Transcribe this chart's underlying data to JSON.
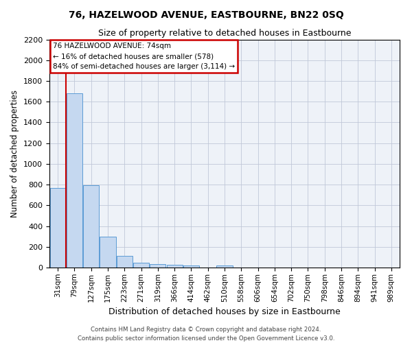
{
  "title": "76, HAZELWOOD AVENUE, EASTBOURNE, BN22 0SQ",
  "subtitle": "Size of property relative to detached houses in Eastbourne",
  "xlabel": "Distribution of detached houses by size in Eastbourne",
  "ylabel": "Number of detached properties",
  "categories": [
    "31sqm",
    "79sqm",
    "127sqm",
    "175sqm",
    "223sqm",
    "271sqm",
    "319sqm",
    "366sqm",
    "414sqm",
    "462sqm",
    "510sqm",
    "558sqm",
    "606sqm",
    "654sqm",
    "702sqm",
    "750sqm",
    "798sqm",
    "846sqm",
    "894sqm",
    "941sqm",
    "989sqm"
  ],
  "values": [
    770,
    1680,
    795,
    300,
    115,
    45,
    32,
    28,
    22,
    0,
    22,
    0,
    0,
    0,
    0,
    0,
    0,
    0,
    0,
    0,
    0
  ],
  "bar_color": "#c5d8f0",
  "bar_edge_color": "#5b9bd5",
  "grid_color": "#c0c8d8",
  "background_color": "#eef2f8",
  "annotation_title": "76 HAZELWOOD AVENUE: 74sqm",
  "annotation_line1": "← 16% of detached houses are smaller (578)",
  "annotation_line2": "84% of semi-detached houses are larger (3,114) →",
  "annotation_box_color": "#ffffff",
  "annotation_box_edge": "#cc0000",
  "red_line_x": 0.5,
  "ylim": [
    0,
    2200
  ],
  "yticks": [
    0,
    200,
    400,
    600,
    800,
    1000,
    1200,
    1400,
    1600,
    1800,
    2000,
    2200
  ],
  "footer1": "Contains HM Land Registry data © Crown copyright and database right 2024.",
  "footer2": "Contains public sector information licensed under the Open Government Licence v3.0."
}
